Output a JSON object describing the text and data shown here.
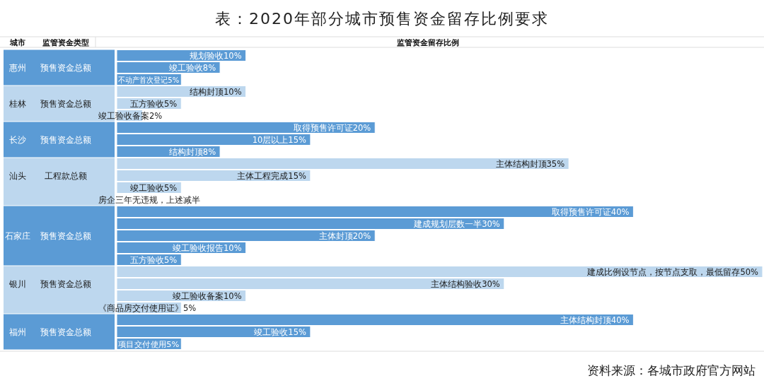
{
  "chart_data": {
    "type": "bar",
    "orientation": "horizontal",
    "title": "表：2020年部分城市预售资金留存比例要求",
    "ylabel": "城市",
    "categories": [
      null,
      "惠州",
      null,
      null,
      "桂林",
      null,
      null,
      "长沙",
      null,
      null,
      "汕头",
      null,
      null,
      null,
      null,
      "石家庄",
      null,
      null,
      null,
      "银川",
      null,
      null,
      null,
      "福州",
      null
    ],
    "values": [
      10,
      8,
      5,
      10,
      5,
      2,
      20,
      15,
      8,
      35,
      15,
      5,
      null,
      40,
      30,
      20,
      10,
      5,
      50,
      30,
      10,
      5,
      40,
      15,
      5
    ],
    "colors": [
      "#5b9bd5",
      "#5b9bd5",
      "#5b9bd5",
      "#bdd7ee",
      "#bdd7ee",
      "#bdd7ee",
      "#5b9bd5",
      "#5b9bd5",
      "#5b9bd5",
      "#bdd7ee",
      "#bdd7ee",
      "#bdd7ee",
      "#bdd7ee",
      "#5b9bd5",
      "#5b9bd5",
      "#5b9bd5",
      "#5b9bd5",
      "#5b9bd5",
      "#bdd7ee",
      "#bdd7ee",
      "#bdd7ee",
      "#bdd7ee",
      "#5b9bd5",
      "#5b9bd5",
      "#5b9bd5"
    ],
    "value_labels": [
      "规划验收10%",
      "竣工验收8%",
      "不动产首次登记5%",
      "结构封顶10%",
      "五方验收5%",
      "竣工验收备案2%",
      "取得预售许可证20%",
      "10层以上15%",
      "结构封顶8%",
      "主体结构封顶35%",
      "主体工程完成15%",
      "竣工验收5%",
      "房企三年无违规，上述减半",
      "取得预售许可证40%",
      "建成规划层数一半30%",
      "主体封顶20%",
      "竣工验收报告10%",
      "五方验收5%",
      "建成比例设节点，按节点支取，最低留存50%",
      "主体结构验收30%",
      "竣工验收备案10%",
      "《商品房交付使用证》5%",
      "主体结构封顶40%",
      "竣工验收15%",
      "项目交付使用5%"
    ],
    "annotations": [
      "监管资金类型",
      "监管资金留存比例",
      "预售资金总额",
      "预售资金总额",
      "预售资金总额",
      "工程款总额",
      "预售资金总额",
      "预售资金总额",
      "预售资金总额",
      "资料来源：各城市政府官方网站"
    ]
  }
}
